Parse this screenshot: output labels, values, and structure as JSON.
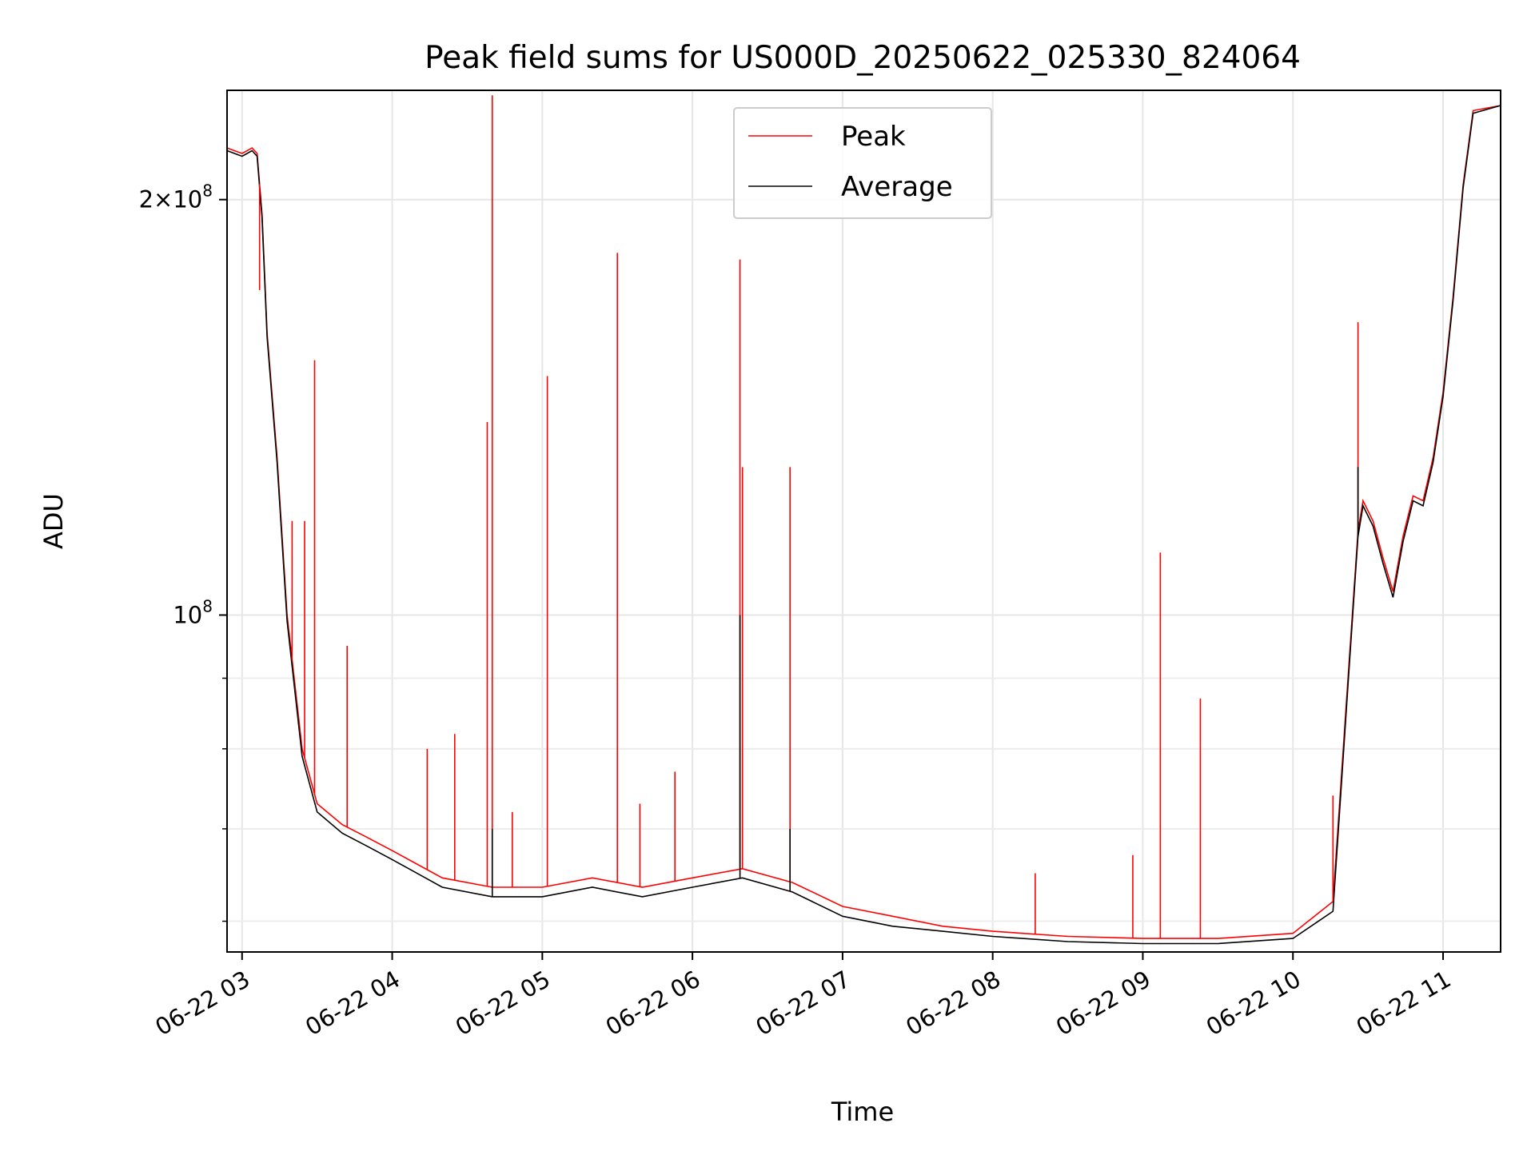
{
  "chart_data": {
    "type": "line",
    "title": "Peak field sums for US000D_20250622_025330_824064",
    "xlabel": "Time",
    "ylabel": "ADU",
    "y_scale": "log",
    "ylim": [
      57000000,
      240000000
    ],
    "xlim": [
      "2025-06-22 02:54",
      "2025-06-22 11:23"
    ],
    "grid": true,
    "legend_position": "upper center",
    "x_ticks": [
      "2025-06-22 03:00",
      "2025-06-22 04:00",
      "2025-06-22 05:00",
      "2025-06-22 06:00",
      "2025-06-22 07:00",
      "2025-06-22 08:00",
      "2025-06-22 09:00",
      "2025-06-22 10:00",
      "2025-06-22 11:00"
    ],
    "x_tick_labels": [
      "06-22 03",
      "06-22 04",
      "06-22 05",
      "06-22 06",
      "06-22 07",
      "06-22 08",
      "06-22 09",
      "06-22 10",
      "06-22 11"
    ],
    "y_tick_labels": [
      {
        "value": 100000000,
        "label": "10",
        "exponent": "8",
        "prefix": ""
      },
      {
        "value": 200000000,
        "label": "10",
        "exponent": "8",
        "prefix": "2×"
      }
    ],
    "series": [
      {
        "name": "Peak",
        "color": "#ff0000",
        "x": [
          "2025-06-22 02:54",
          "2025-06-22 03:00",
          "2025-06-22 03:04",
          "2025-06-22 03:06",
          "2025-06-22 03:08",
          "2025-06-22 03:10",
          "2025-06-22 03:14",
          "2025-06-22 03:18",
          "2025-06-22 03:24",
          "2025-06-22 03:30",
          "2025-06-22 03:40",
          "2025-06-22 03:50",
          "2025-06-22 04:00",
          "2025-06-22 04:20",
          "2025-06-22 04:40",
          "2025-06-22 05:00",
          "2025-06-22 05:20",
          "2025-06-22 05:40",
          "2025-06-22 06:00",
          "2025-06-22 06:20",
          "2025-06-22 06:40",
          "2025-06-22 07:00",
          "2025-06-22 07:20",
          "2025-06-22 07:40",
          "2025-06-22 08:00",
          "2025-06-22 08:30",
          "2025-06-22 09:00",
          "2025-06-22 09:30",
          "2025-06-22 10:00",
          "2025-06-22 10:16",
          "2025-06-22 10:22",
          "2025-06-22 10:26",
          "2025-06-22 10:28",
          "2025-06-22 10:32",
          "2025-06-22 10:36",
          "2025-06-22 10:40",
          "2025-06-22 10:44",
          "2025-06-22 10:48",
          "2025-06-22 10:52",
          "2025-06-22 10:56",
          "2025-06-22 11:00",
          "2025-06-22 11:04",
          "2025-06-22 11:08",
          "2025-06-22 11:12",
          "2025-06-22 11:23"
        ],
        "values": [
          218000000,
          216000000,
          218000000,
          216000000,
          195000000,
          160000000,
          130000000,
          100000000,
          80000000,
          73000000,
          70500000,
          69000000,
          67500000,
          64500000,
          63500000,
          63500000,
          64500000,
          63500000,
          64500000,
          65500000,
          64000000,
          61500000,
          60500000,
          59500000,
          59000000,
          58500000,
          58300000,
          58300000,
          58800000,
          62000000,
          90000000,
          115000000,
          121000000,
          117000000,
          110000000,
          104000000,
          114000000,
          122000000,
          121000000,
          130000000,
          145000000,
          170000000,
          205000000,
          232000000,
          234000000
        ],
        "spikes": [
          {
            "x": "2025-06-22 03:07",
            "y": 172000000
          },
          {
            "x": "2025-06-22 03:20",
            "y": 117000000
          },
          {
            "x": "2025-06-22 03:25",
            "y": 117000000
          },
          {
            "x": "2025-06-22 03:29",
            "y": 153000000
          },
          {
            "x": "2025-06-22 03:42",
            "y": 95000000
          },
          {
            "x": "2025-06-22 04:14",
            "y": 80000000
          },
          {
            "x": "2025-06-22 04:25",
            "y": 82000000
          },
          {
            "x": "2025-06-22 04:38",
            "y": 138000000
          },
          {
            "x": "2025-06-22 04:40",
            "y": 238000000
          },
          {
            "x": "2025-06-22 04:48",
            "y": 72000000
          },
          {
            "x": "2025-06-22 05:02",
            "y": 149000000
          },
          {
            "x": "2025-06-22 05:30",
            "y": 183000000
          },
          {
            "x": "2025-06-22 05:39",
            "y": 73000000
          },
          {
            "x": "2025-06-22 05:53",
            "y": 77000000
          },
          {
            "x": "2025-06-22 06:19",
            "y": 181000000
          },
          {
            "x": "2025-06-22 06:20",
            "y": 128000000
          },
          {
            "x": "2025-06-22 06:39",
            "y": 128000000
          },
          {
            "x": "2025-06-22 08:17",
            "y": 65000000
          },
          {
            "x": "2025-06-22 08:56",
            "y": 67000000
          },
          {
            "x": "2025-06-22 09:07",
            "y": 111000000
          },
          {
            "x": "2025-06-22 09:23",
            "y": 87000000
          },
          {
            "x": "2025-06-22 10:16",
            "y": 74000000
          },
          {
            "x": "2025-06-22 10:26",
            "y": 163000000
          }
        ]
      },
      {
        "name": "Average",
        "color": "#000000",
        "x": [
          "2025-06-22 02:54",
          "2025-06-22 03:00",
          "2025-06-22 03:04",
          "2025-06-22 03:06",
          "2025-06-22 03:08",
          "2025-06-22 03:10",
          "2025-06-22 03:14",
          "2025-06-22 03:18",
          "2025-06-22 03:24",
          "2025-06-22 03:30",
          "2025-06-22 03:40",
          "2025-06-22 03:50",
          "2025-06-22 04:00",
          "2025-06-22 04:20",
          "2025-06-22 04:40",
          "2025-06-22 05:00",
          "2025-06-22 05:20",
          "2025-06-22 05:40",
          "2025-06-22 06:00",
          "2025-06-22 06:20",
          "2025-06-22 06:40",
          "2025-06-22 07:00",
          "2025-06-22 07:20",
          "2025-06-22 07:40",
          "2025-06-22 08:00",
          "2025-06-22 08:30",
          "2025-06-22 09:00",
          "2025-06-22 09:30",
          "2025-06-22 10:00",
          "2025-06-22 10:16",
          "2025-06-22 10:22",
          "2025-06-22 10:26",
          "2025-06-22 10:28",
          "2025-06-22 10:32",
          "2025-06-22 10:36",
          "2025-06-22 10:40",
          "2025-06-22 10:44",
          "2025-06-22 10:48",
          "2025-06-22 10:52",
          "2025-06-22 10:56",
          "2025-06-22 11:00",
          "2025-06-22 11:04",
          "2025-06-22 11:08",
          "2025-06-22 11:12",
          "2025-06-22 11:23"
        ],
        "values": [
          217000000,
          215000000,
          217000000,
          215000000,
          194000000,
          159000000,
          129000000,
          99000000,
          79000000,
          72000000,
          69500000,
          68000000,
          66500000,
          63500000,
          62500000,
          62500000,
          63500000,
          62500000,
          63500000,
          64500000,
          63000000,
          60500000,
          59500000,
          59000000,
          58500000,
          58000000,
          57800000,
          57800000,
          58300000,
          61000000,
          89000000,
          114000000,
          120000000,
          116000000,
          109000000,
          103000000,
          113000000,
          121000000,
          120000000,
          129000000,
          144000000,
          169000000,
          204000000,
          231000000,
          234000000
        ],
        "spikes": [
          {
            "x": "2025-06-22 06:19",
            "y": 100000000
          },
          {
            "x": "2025-06-22 04:40",
            "y": 70000000
          },
          {
            "x": "2025-06-22 06:39",
            "y": 70000000
          },
          {
            "x": "2025-06-22 10:26",
            "y": 128000000
          }
        ]
      }
    ]
  }
}
